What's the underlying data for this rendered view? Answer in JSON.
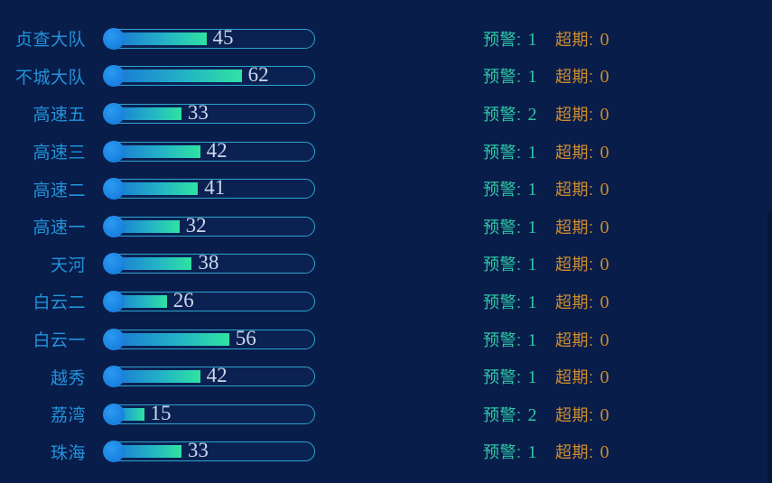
{
  "colors": {
    "background": "#091d4b",
    "label_blue": "#2193da",
    "warn_teal": "#2fc7a4",
    "overdue_orange": "#cd8c2e",
    "capsule_border": "#2da5cf",
    "bar_gradient_start": "#1a77d6",
    "bar_gradient_end": "#2fe3a2",
    "cap_circle_blue": "#1b84e2",
    "bar_value_text": "#ccd6ec"
  },
  "labels": {
    "warn": "预警:",
    "overdue": "超期:"
  },
  "rows": [
    {
      "label": "贞查大队",
      "value": 45,
      "warn": 1,
      "overdue": 0
    },
    {
      "label": "不城大队",
      "value": 62,
      "warn": 1,
      "overdue": 0
    },
    {
      "label": "高速五",
      "value": 33,
      "warn": 2,
      "overdue": 0
    },
    {
      "label": "高速三",
      "value": 42,
      "warn": 1,
      "overdue": 0
    },
    {
      "label": "高速二",
      "value": 41,
      "warn": 1,
      "overdue": 0
    },
    {
      "label": "高速一",
      "value": 32,
      "warn": 1,
      "overdue": 0
    },
    {
      "label": "天河",
      "value": 38,
      "warn": 1,
      "overdue": 0
    },
    {
      "label": "白云二",
      "value": 26,
      "warn": 1,
      "overdue": 0
    },
    {
      "label": "白云一",
      "value": 56,
      "warn": 1,
      "overdue": 0
    },
    {
      "label": "越秀",
      "value": 42,
      "warn": 1,
      "overdue": 0
    },
    {
      "label": "荔湾",
      "value": 15,
      "warn": 2,
      "overdue": 0
    },
    {
      "label": "珠海",
      "value": 33,
      "warn": 1,
      "overdue": 0
    }
  ],
  "chart_data": {
    "type": "bar",
    "orientation": "horizontal",
    "title": "",
    "xlabel": "",
    "ylabel": "",
    "xlim": [
      0,
      100
    ],
    "grid": false,
    "legend_position": "none",
    "categories": [
      "贞查大队",
      "不城大队",
      "高速五",
      "高速三",
      "高速二",
      "高速一",
      "天河",
      "白云二",
      "白云一",
      "越秀",
      "荔湾",
      "珠海"
    ],
    "series": [
      {
        "name": "value",
        "values": [
          45,
          62,
          33,
          42,
          41,
          32,
          38,
          26,
          56,
          42,
          15,
          33
        ]
      },
      {
        "name": "预警",
        "values": [
          1,
          1,
          2,
          1,
          1,
          1,
          1,
          1,
          1,
          1,
          2,
          1
        ]
      },
      {
        "name": "超期",
        "values": [
          0,
          0,
          0,
          0,
          0,
          0,
          0,
          0,
          0,
          0,
          0,
          0
        ]
      }
    ]
  }
}
